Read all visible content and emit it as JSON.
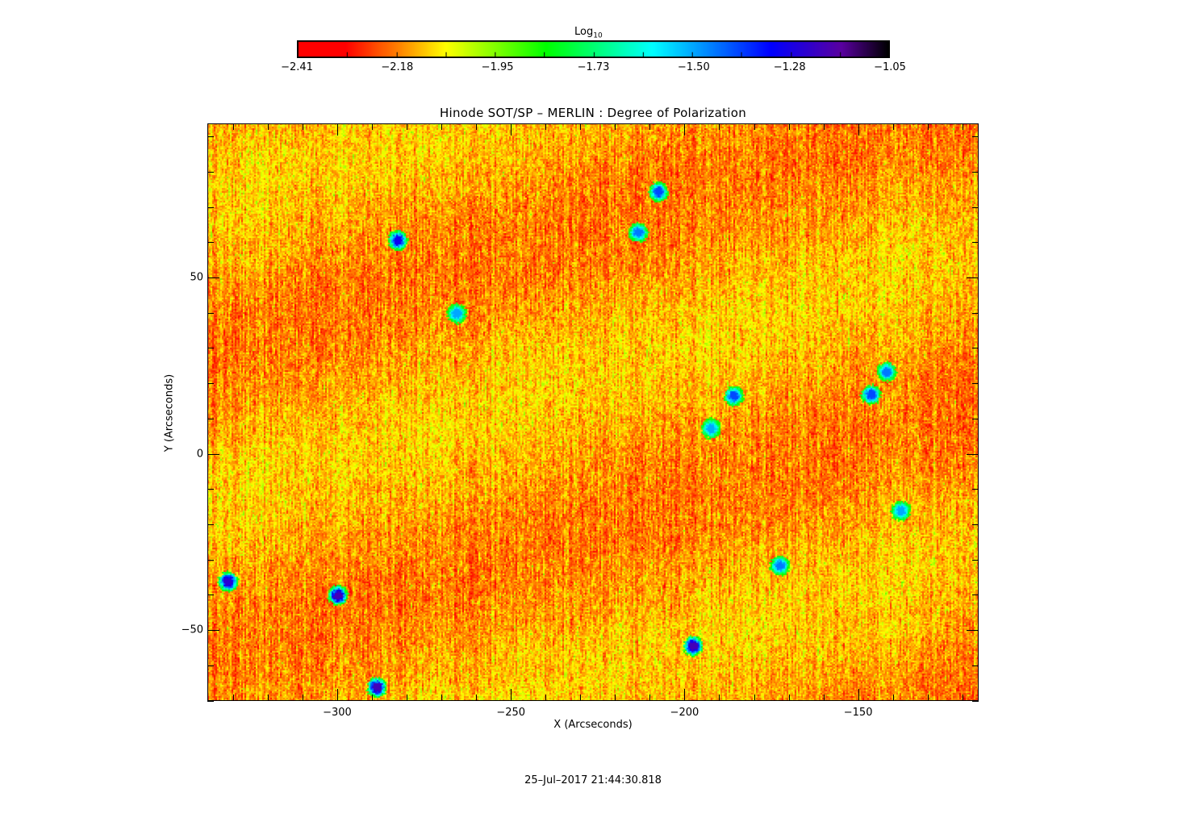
{
  "chart_data": {
    "type": "heatmap",
    "title": "Hinode SOT/SP – MERLIN : Degree of Polarization",
    "xlabel": "X (Arcseconds)",
    "ylabel": "Y (Arcseconds)",
    "xlim": [
      -337.4,
      -115.3
    ],
    "ylim": [
      -70.1,
      93.7
    ],
    "xticks": [
      -300,
      -250,
      -200,
      -150
    ],
    "xtick_labels": [
      "−300",
      "−250",
      "−200",
      "−150"
    ],
    "yticks": [
      -50,
      0,
      50
    ],
    "ytick_labels": [
      "−50",
      "0",
      "50"
    ],
    "minor_tick_step": 10,
    "colorbar": {
      "title_base": "Log",
      "title_sub": "10",
      "range": [
        -2.41,
        -1.05
      ],
      "ticks": [
        -2.41,
        -2.18,
        -1.95,
        -1.73,
        -1.5,
        -1.28,
        -1.05
      ],
      "tick_labels": [
        "−2.41",
        "−2.18",
        "−1.95",
        "−1.73",
        "−1.50",
        "−1.28",
        "−1.05"
      ],
      "colormap": [
        "#ff0000",
        "#ff0000",
        "#ff8200",
        "#ffff00",
        "#00ff00",
        "#00ffff",
        "#0000ff",
        "#5a00a0",
        "#000000"
      ]
    },
    "typical_value": -2.15,
    "strong_patches": [
      {
        "x": -282.8,
        "y": 60.8,
        "value": -1.3
      },
      {
        "x": -207.7,
        "y": 74.5,
        "value": -1.4
      },
      {
        "x": -213.5,
        "y": 63.0,
        "value": -1.45
      },
      {
        "x": -300.0,
        "y": -40.0,
        "value": -1.2
      },
      {
        "x": -331.6,
        "y": -36.0,
        "value": -1.25
      },
      {
        "x": -288.8,
        "y": -66.0,
        "value": -1.2
      },
      {
        "x": -197.7,
        "y": -54.3,
        "value": -1.2
      },
      {
        "x": -186.0,
        "y": 16.6,
        "value": -1.4
      },
      {
        "x": -146.5,
        "y": 17.0,
        "value": -1.4
      },
      {
        "x": -142.0,
        "y": 23.5,
        "value": -1.45
      },
      {
        "x": -265.8,
        "y": 40.0,
        "value": -1.5
      },
      {
        "x": -192.6,
        "y": 7.4,
        "value": -1.5
      },
      {
        "x": -172.8,
        "y": -31.5,
        "value": -1.45
      },
      {
        "x": -137.9,
        "y": -16.0,
        "value": -1.5
      }
    ]
  },
  "footer": {
    "timestamp": "25–Jul–2017 21:44:30.818"
  }
}
